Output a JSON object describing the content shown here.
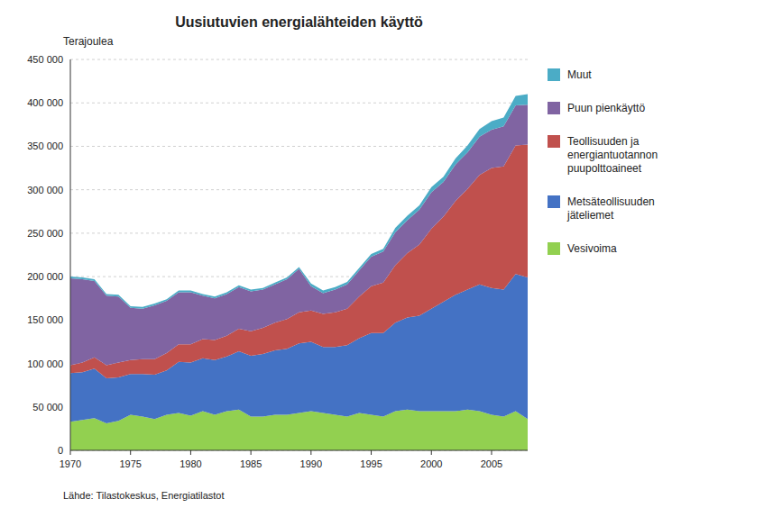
{
  "chart_data": {
    "type": "area",
    "stacked": true,
    "title": "Uusiutuvien energialähteiden käyttö",
    "ylabel": "Terajoulea",
    "annotations": [
      "Lähde: Tilastokeskus, Energiatilastot"
    ],
    "x": [
      1970,
      1971,
      1972,
      1973,
      1974,
      1975,
      1976,
      1977,
      1978,
      1979,
      1980,
      1981,
      1982,
      1983,
      1984,
      1985,
      1986,
      1987,
      1988,
      1989,
      1990,
      1991,
      1992,
      1993,
      1994,
      1995,
      1996,
      1997,
      1998,
      1999,
      2000,
      2001,
      2002,
      2003,
      2004,
      2005,
      2006,
      2007,
      2008
    ],
    "series": [
      {
        "name": "Vesivoima",
        "color": "#92d050",
        "values": [
          33000,
          35000,
          37000,
          31000,
          34000,
          41000,
          39000,
          36000,
          41000,
          43000,
          40000,
          45000,
          41000,
          45000,
          47000,
          39000,
          39000,
          41000,
          41000,
          43000,
          45000,
          43000,
          41000,
          39000,
          43000,
          41000,
          39000,
          45000,
          47000,
          45000,
          45000,
          45000,
          45000,
          47000,
          45000,
          41000,
          39000,
          45000,
          36000
        ]
      },
      {
        "name": "Metsäteollisuuden\njäteliemet",
        "color": "#4472c4",
        "values": [
          56000,
          55000,
          57000,
          52000,
          50000,
          47000,
          49000,
          51000,
          51000,
          59000,
          61000,
          61000,
          63000,
          63000,
          67000,
          70000,
          72000,
          74000,
          76000,
          80000,
          80000,
          76000,
          78000,
          82000,
          86000,
          94000,
          96000,
          102000,
          106000,
          110000,
          118000,
          126000,
          134000,
          138000,
          146000,
          146000,
          146000,
          158000,
          163000
        ]
      },
      {
        "name": "Teollisuuden ja\nenergiantuotannon\npuupolttoaineet",
        "color": "#c0504d",
        "values": [
          9000,
          11000,
          13000,
          15000,
          17000,
          16000,
          17000,
          18000,
          20000,
          20000,
          21000,
          22000,
          23000,
          24000,
          26000,
          28000,
          30000,
          32000,
          34000,
          36000,
          36000,
          38000,
          40000,
          42000,
          48000,
          54000,
          58000,
          66000,
          74000,
          82000,
          92000,
          98000,
          108000,
          116000,
          126000,
          138000,
          142000,
          148000,
          153000
        ]
      },
      {
        "name": "Puun pienkäyttö",
        "color": "#8064a2",
        "values": [
          100000,
          96000,
          88000,
          80000,
          76000,
          60000,
          58000,
          62000,
          60000,
          60000,
          60000,
          50000,
          48000,
          48000,
          48000,
          46000,
          44000,
          44000,
          46000,
          50000,
          28000,
          24000,
          26000,
          28000,
          30000,
          34000,
          36000,
          38000,
          38000,
          40000,
          42000,
          40000,
          42000,
          42000,
          44000,
          44000,
          46000,
          46000,
          46000
        ]
      },
      {
        "name": "Muut",
        "color": "#4bacc6",
        "values": [
          2000,
          2000,
          2000,
          2000,
          2000,
          2000,
          2000,
          2000,
          2000,
          2000,
          2000,
          2000,
          2000,
          2000,
          2000,
          2000,
          2000,
          2000,
          2000,
          2000,
          3000,
          3000,
          3000,
          3000,
          3000,
          3000,
          3000,
          5000,
          5000,
          5000,
          6000,
          6000,
          7000,
          8000,
          9000,
          10000,
          10000,
          11000,
          12000
        ]
      }
    ],
    "xlim": [
      1970,
      2008
    ],
    "xticks": [
      1970,
      1975,
      1980,
      1985,
      1990,
      1995,
      2000,
      2005
    ],
    "ylim": [
      0,
      450000
    ],
    "yticks": [
      0,
      {
        "value": 50000,
        "label": "50 000"
      },
      {
        "value": 100000,
        "label": "100 000"
      },
      {
        "value": 150000,
        "label": "150 000"
      },
      {
        "value": 200000,
        "label": "200 000"
      },
      {
        "value": 250000,
        "label": "250 000"
      },
      {
        "value": 300000,
        "label": "300 000"
      },
      {
        "value": 350000,
        "label": "350 000"
      },
      {
        "value": 400000,
        "label": "400 000"
      },
      {
        "value": 450000,
        "label": "450 000"
      }
    ],
    "grid": true,
    "legend": "right"
  }
}
